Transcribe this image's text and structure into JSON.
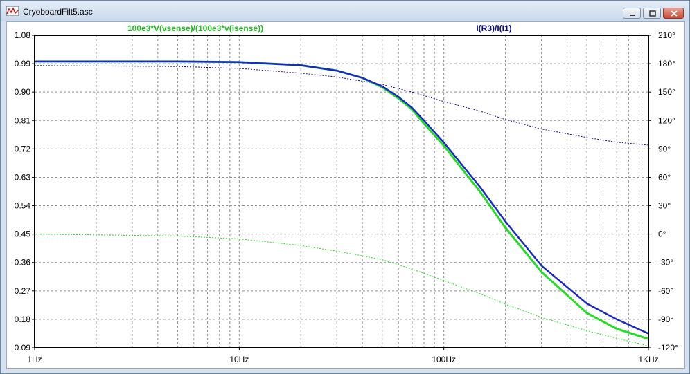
{
  "window": {
    "title": "CryoboardFilt5.asc",
    "buttons": [
      "minimize",
      "maximize",
      "close"
    ]
  },
  "chart_data": {
    "type": "line",
    "x_scale": "log",
    "xlim": [
      1,
      1000
    ],
    "x_ticks": [
      {
        "value": 1,
        "label": "1Hz"
      },
      {
        "value": 10,
        "label": "10Hz"
      },
      {
        "value": 100,
        "label": "100Hz"
      },
      {
        "value": 1000,
        "label": "1KHz"
      }
    ],
    "ylim_left": [
      0.09,
      1.08
    ],
    "y_ticks_left": [
      "1.08",
      "0.99",
      "0.90",
      "0.81",
      "0.72",
      "0.63",
      "0.54",
      "0.45",
      "0.36",
      "0.27",
      "0.18",
      "0.09"
    ],
    "ylim_right": [
      -120,
      210
    ],
    "y_ticks_right": [
      "210°",
      "180°",
      "150°",
      "120°",
      "90°",
      "60°",
      "30°",
      "0°",
      "-30°",
      "-60°",
      "-90°",
      "-120°"
    ],
    "grid": true,
    "colors": {
      "green": "#22dd22",
      "navy": "#0b0b8c",
      "blue": "#1a28c8",
      "grid": "#8c8c8c"
    },
    "series": [
      {
        "name": "100e3*V(vsense)/(100e3*v(isense))",
        "color": "#22dd22",
        "magnitude": {
          "x": [
            1,
            5,
            10,
            20,
            30,
            40,
            50,
            60,
            70,
            80,
            100,
            150,
            200,
            300,
            500,
            700,
            1000
          ],
          "y": [
            0.997,
            0.997,
            0.995,
            0.985,
            0.968,
            0.945,
            0.915,
            0.88,
            0.845,
            0.8,
            0.73,
            0.585,
            0.47,
            0.33,
            0.2,
            0.15,
            0.118
          ]
        },
        "phase": {
          "x": [
            1,
            5,
            10,
            20,
            30,
            50,
            70,
            100,
            150,
            200,
            300,
            500,
            700,
            1000
          ],
          "y": [
            0,
            -2,
            -5,
            -12,
            -18,
            -27,
            -37,
            -49,
            -63,
            -74,
            -88,
            -102,
            -110,
            -118
          ]
        }
      },
      {
        "name": "I(R3)/I(I1)",
        "color": "#0b0b8c",
        "magnitude": {
          "x": [
            1,
            5,
            10,
            20,
            30,
            40,
            50,
            60,
            70,
            80,
            100,
            150,
            200,
            300,
            500,
            700,
            1000
          ],
          "y": [
            0.997,
            0.997,
            0.995,
            0.985,
            0.968,
            0.945,
            0.918,
            0.885,
            0.85,
            0.81,
            0.74,
            0.6,
            0.49,
            0.35,
            0.23,
            0.18,
            0.135
          ]
        },
        "phase": {
          "x": [
            1,
            5,
            10,
            20,
            30,
            50,
            70,
            100,
            150,
            200,
            300,
            500,
            700,
            1000
          ],
          "y": [
            178,
            177,
            175,
            170,
            166,
            158,
            150,
            140,
            130,
            121,
            111,
            102,
            97,
            94
          ]
        }
      }
    ]
  }
}
